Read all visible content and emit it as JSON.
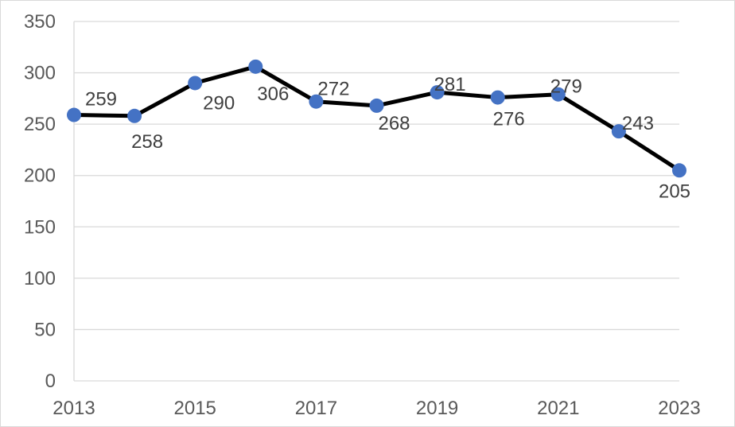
{
  "chart_data": {
    "type": "line",
    "title": "",
    "xlabel": "",
    "ylabel": "",
    "x": [
      2013,
      2014,
      2015,
      2016,
      2017,
      2018,
      2019,
      2020,
      2021,
      2022,
      2023
    ],
    "x_tick_labels": [
      "2013",
      "2015",
      "2017",
      "2019",
      "2021",
      "2023"
    ],
    "y_tick_labels": [
      "0",
      "50",
      "100",
      "150",
      "200",
      "250",
      "300",
      "350"
    ],
    "ylim": [
      0,
      350
    ],
    "grid": true,
    "legend": "none",
    "series": [
      {
        "values": [
          259,
          258,
          290,
          306,
          272,
          268,
          281,
          276,
          279,
          243,
          205
        ],
        "line_color": "#000000",
        "marker_color": "#4472C4"
      }
    ]
  }
}
